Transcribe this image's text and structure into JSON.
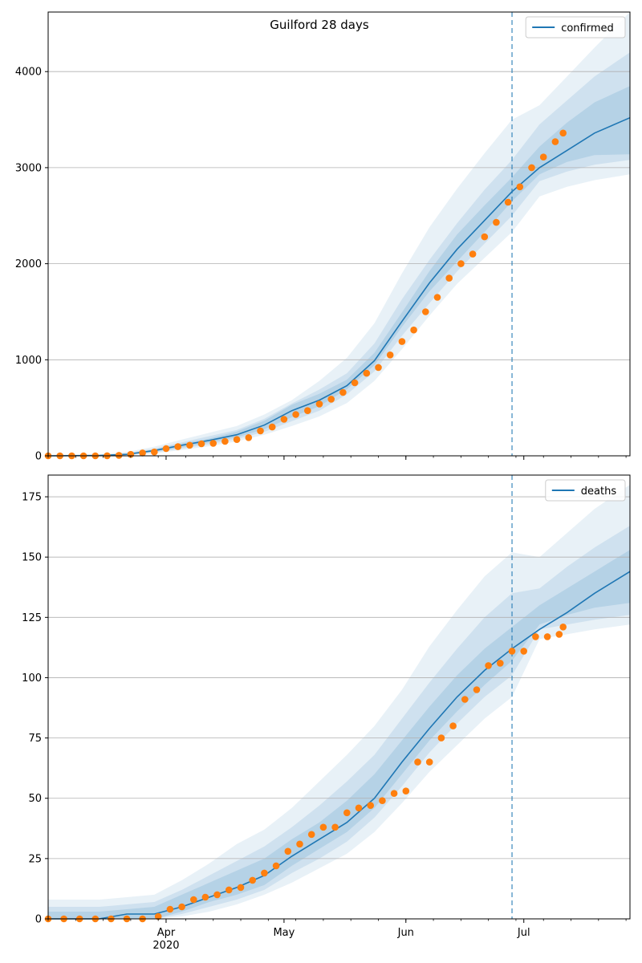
{
  "figure": {
    "title": "Guilford 28 days"
  },
  "colors": {
    "line": "#1f77b4",
    "points": "#ff7f0e",
    "band": "#1f77b4",
    "grid": "#b0b0b0",
    "divider": "#1f77b4"
  },
  "x_axis": {
    "start": "2020-03-02",
    "end": "2020-07-28",
    "major_ticks": [
      {
        "date": "2020-04-01",
        "label": "Apr"
      },
      {
        "date": "2020-05-01",
        "label": "May"
      },
      {
        "date": "2020-06-01",
        "label": "Jun"
      },
      {
        "date": "2020-07-01",
        "label": "Jul"
      }
    ],
    "year_label": "2020",
    "divider_date": "2020-06-28"
  },
  "chart_data": [
    {
      "type": "line",
      "legend": "confirmed",
      "legend_position": "top-right",
      "grid": "y",
      "ylim": [
        0,
        4620
      ],
      "yticks": [
        0,
        1000,
        2000,
        3000,
        4000
      ],
      "line": [
        {
          "date": "2020-03-02",
          "value": 0
        },
        {
          "date": "2020-03-15",
          "value": 3
        },
        {
          "date": "2020-03-22",
          "value": 15
        },
        {
          "date": "2020-03-29",
          "value": 55
        },
        {
          "date": "2020-04-05",
          "value": 110
        },
        {
          "date": "2020-04-12",
          "value": 160
        },
        {
          "date": "2020-04-19",
          "value": 220
        },
        {
          "date": "2020-04-26",
          "value": 320
        },
        {
          "date": "2020-05-03",
          "value": 470
        },
        {
          "date": "2020-05-10",
          "value": 580
        },
        {
          "date": "2020-05-17",
          "value": 730
        },
        {
          "date": "2020-05-24",
          "value": 990
        },
        {
          "date": "2020-05-31",
          "value": 1400
        },
        {
          "date": "2020-06-07",
          "value": 1800
        },
        {
          "date": "2020-06-14",
          "value": 2150
        },
        {
          "date": "2020-06-21",
          "value": 2450
        },
        {
          "date": "2020-06-28",
          "value": 2750
        },
        {
          "date": "2020-07-05",
          "value": 3000
        },
        {
          "date": "2020-07-12",
          "value": 3180
        },
        {
          "date": "2020-07-19",
          "value": 3360
        },
        {
          "date": "2020-07-28",
          "value": 3520
        }
      ],
      "bands": [
        {
          "opacity": 0.1,
          "lower": [
            0,
            0,
            5,
            25,
            60,
            100,
            150,
            220,
            310,
            410,
            550,
            780,
            1110,
            1460,
            1790,
            2060,
            2330,
            2700,
            2800,
            2870,
            2930
          ],
          "upper": [
            10,
            15,
            40,
            95,
            170,
            240,
            310,
            430,
            580,
            780,
            1020,
            1380,
            1900,
            2380,
            2780,
            3150,
            3500,
            3650,
            3950,
            4250,
            4620
          ]
        },
        {
          "opacity": 0.12,
          "lower": [
            0,
            1,
            8,
            35,
            75,
            120,
            175,
            250,
            360,
            470,
            640,
            880,
            1250,
            1590,
            1920,
            2210,
            2500,
            2860,
            2960,
            3030,
            3080
          ],
          "upper": [
            5,
            8,
            28,
            75,
            140,
            205,
            270,
            385,
            545,
            690,
            860,
            1170,
            1630,
            2040,
            2420,
            2770,
            3080,
            3450,
            3700,
            3950,
            4200
          ]
        },
        {
          "opacity": 0.14,
          "lower": [
            0,
            2,
            10,
            43,
            88,
            138,
            193,
            278,
            402,
            517,
            693,
            943,
            1343,
            1713,
            2023,
            2330,
            2650,
            2930,
            3060,
            3130,
            3140
          ],
          "upper": [
            2,
            5,
            21,
            67,
            127,
            180,
            253,
            366,
            531,
            647,
            793,
            1073,
            1493,
            1923,
            2303,
            2607,
            2900,
            3220,
            3470,
            3680,
            3850
          ]
        }
      ],
      "points": [
        {
          "date": "2020-03-02",
          "value": 0
        },
        {
          "date": "2020-03-05",
          "value": 0
        },
        {
          "date": "2020-03-08",
          "value": 0
        },
        {
          "date": "2020-03-11",
          "value": 0
        },
        {
          "date": "2020-03-14",
          "value": 0
        },
        {
          "date": "2020-03-17",
          "value": 1
        },
        {
          "date": "2020-03-20",
          "value": 5
        },
        {
          "date": "2020-03-23",
          "value": 15
        },
        {
          "date": "2020-03-26",
          "value": 30
        },
        {
          "date": "2020-03-29",
          "value": 40
        },
        {
          "date": "2020-04-01",
          "value": 75
        },
        {
          "date": "2020-04-04",
          "value": 95
        },
        {
          "date": "2020-04-07",
          "value": 110
        },
        {
          "date": "2020-04-10",
          "value": 125
        },
        {
          "date": "2020-04-13",
          "value": 130
        },
        {
          "date": "2020-04-16",
          "value": 150
        },
        {
          "date": "2020-04-19",
          "value": 170
        },
        {
          "date": "2020-04-22",
          "value": 190
        },
        {
          "date": "2020-04-25",
          "value": 260
        },
        {
          "date": "2020-04-28",
          "value": 300
        },
        {
          "date": "2020-05-01",
          "value": 380
        },
        {
          "date": "2020-05-04",
          "value": 430
        },
        {
          "date": "2020-05-07",
          "value": 470
        },
        {
          "date": "2020-05-10",
          "value": 540
        },
        {
          "date": "2020-05-13",
          "value": 590
        },
        {
          "date": "2020-05-16",
          "value": 660
        },
        {
          "date": "2020-05-19",
          "value": 760
        },
        {
          "date": "2020-05-22",
          "value": 860
        },
        {
          "date": "2020-05-25",
          "value": 920
        },
        {
          "date": "2020-05-28",
          "value": 1050
        },
        {
          "date": "2020-05-31",
          "value": 1190
        },
        {
          "date": "2020-06-03",
          "value": 1310
        },
        {
          "date": "2020-06-06",
          "value": 1500
        },
        {
          "date": "2020-06-09",
          "value": 1650
        },
        {
          "date": "2020-06-12",
          "value": 1850
        },
        {
          "date": "2020-06-15",
          "value": 2000
        },
        {
          "date": "2020-06-18",
          "value": 2100
        },
        {
          "date": "2020-06-21",
          "value": 2280
        },
        {
          "date": "2020-06-24",
          "value": 2430
        },
        {
          "date": "2020-06-27",
          "value": 2640
        },
        {
          "date": "2020-06-30",
          "value": 2800
        },
        {
          "date": "2020-07-03",
          "value": 3000
        },
        {
          "date": "2020-07-06",
          "value": 3110
        },
        {
          "date": "2020-07-09",
          "value": 3270
        },
        {
          "date": "2020-07-11",
          "value": 3360
        }
      ]
    },
    {
      "type": "line",
      "legend": "deaths",
      "legend_position": "top-right",
      "grid": "y",
      "ylim": [
        0,
        184
      ],
      "yticks": [
        0,
        25,
        50,
        75,
        100,
        125,
        150,
        175
      ],
      "line": [
        {
          "date": "2020-03-02",
          "value": 0
        },
        {
          "date": "2020-03-15",
          "value": 0
        },
        {
          "date": "2020-03-22",
          "value": 2
        },
        {
          "date": "2020-03-29",
          "value": 2
        },
        {
          "date": "2020-04-05",
          "value": 5
        },
        {
          "date": "2020-04-12",
          "value": 9
        },
        {
          "date": "2020-04-19",
          "value": 13
        },
        {
          "date": "2020-04-26",
          "value": 18
        },
        {
          "date": "2020-05-03",
          "value": 26
        },
        {
          "date": "2020-05-10",
          "value": 33
        },
        {
          "date": "2020-05-17",
          "value": 40
        },
        {
          "date": "2020-05-24",
          "value": 50
        },
        {
          "date": "2020-05-31",
          "value": 65
        },
        {
          "date": "2020-06-07",
          "value": 79
        },
        {
          "date": "2020-06-14",
          "value": 92
        },
        {
          "date": "2020-06-21",
          "value": 103
        },
        {
          "date": "2020-06-28",
          "value": 112
        },
        {
          "date": "2020-07-05",
          "value": 120
        },
        {
          "date": "2020-07-12",
          "value": 127
        },
        {
          "date": "2020-07-19",
          "value": 135
        },
        {
          "date": "2020-07-28",
          "value": 144
        }
      ],
      "bands": [
        {
          "opacity": 0.1,
          "lower": [
            0,
            0,
            0,
            0,
            1,
            3,
            6,
            10,
            15,
            21,
            27,
            36,
            48,
            61,
            72,
            83,
            92,
            116,
            118,
            120,
            122
          ],
          "upper": [
            8,
            8,
            9,
            10,
            16,
            23,
            31,
            37,
            46,
            57,
            68,
            80,
            95,
            113,
            128,
            142,
            152,
            150,
            160,
            170,
            180
          ]
        },
        {
          "opacity": 0.12,
          "lower": [
            0,
            0,
            0,
            0,
            2,
            5,
            8,
            12,
            19,
            25,
            32,
            42,
            55,
            69,
            81,
            92,
            101,
            120,
            122,
            124,
            126
          ],
          "upper": [
            5,
            5,
            6,
            7,
            12,
            18,
            24,
            30,
            38,
            47,
            57,
            68,
            83,
            98,
            112,
            125,
            135,
            137,
            146,
            154,
            163
          ]
        },
        {
          "opacity": 0.14,
          "lower": [
            0,
            0,
            0,
            0,
            3,
            7,
            10,
            14,
            22,
            29,
            36,
            46,
            60,
            74,
            86,
            97,
            107,
            122,
            126,
            129,
            131
          ],
          "upper": [
            3,
            3,
            4,
            5,
            10,
            15,
            20,
            25,
            33,
            40,
            49,
            60,
            74,
            88,
            101,
            112,
            121,
            130,
            137,
            144,
            153
          ]
        }
      ],
      "points": [
        {
          "date": "2020-03-02",
          "value": 0
        },
        {
          "date": "2020-03-06",
          "value": 0
        },
        {
          "date": "2020-03-10",
          "value": 0
        },
        {
          "date": "2020-03-14",
          "value": 0
        },
        {
          "date": "2020-03-18",
          "value": 0
        },
        {
          "date": "2020-03-22",
          "value": 0
        },
        {
          "date": "2020-03-26",
          "value": 0
        },
        {
          "date": "2020-03-30",
          "value": 1
        },
        {
          "date": "2020-04-02",
          "value": 4
        },
        {
          "date": "2020-04-05",
          "value": 5
        },
        {
          "date": "2020-04-08",
          "value": 8
        },
        {
          "date": "2020-04-11",
          "value": 9
        },
        {
          "date": "2020-04-14",
          "value": 10
        },
        {
          "date": "2020-04-17",
          "value": 12
        },
        {
          "date": "2020-04-20",
          "value": 13
        },
        {
          "date": "2020-04-23",
          "value": 16
        },
        {
          "date": "2020-04-26",
          "value": 19
        },
        {
          "date": "2020-04-29",
          "value": 22
        },
        {
          "date": "2020-05-02",
          "value": 28
        },
        {
          "date": "2020-05-05",
          "value": 31
        },
        {
          "date": "2020-05-08",
          "value": 35
        },
        {
          "date": "2020-05-11",
          "value": 38
        },
        {
          "date": "2020-05-14",
          "value": 38
        },
        {
          "date": "2020-05-17",
          "value": 44
        },
        {
          "date": "2020-05-20",
          "value": 46
        },
        {
          "date": "2020-05-23",
          "value": 47
        },
        {
          "date": "2020-05-26",
          "value": 49
        },
        {
          "date": "2020-05-29",
          "value": 52
        },
        {
          "date": "2020-06-01",
          "value": 53
        },
        {
          "date": "2020-06-04",
          "value": 65
        },
        {
          "date": "2020-06-07",
          "value": 65
        },
        {
          "date": "2020-06-10",
          "value": 75
        },
        {
          "date": "2020-06-13",
          "value": 80
        },
        {
          "date": "2020-06-16",
          "value": 91
        },
        {
          "date": "2020-06-19",
          "value": 95
        },
        {
          "date": "2020-06-22",
          "value": 105
        },
        {
          "date": "2020-06-25",
          "value": 106
        },
        {
          "date": "2020-06-28",
          "value": 111
        },
        {
          "date": "2020-07-01",
          "value": 111
        },
        {
          "date": "2020-07-04",
          "value": 117
        },
        {
          "date": "2020-07-07",
          "value": 117
        },
        {
          "date": "2020-07-10",
          "value": 118
        },
        {
          "date": "2020-07-11",
          "value": 121
        }
      ]
    }
  ]
}
